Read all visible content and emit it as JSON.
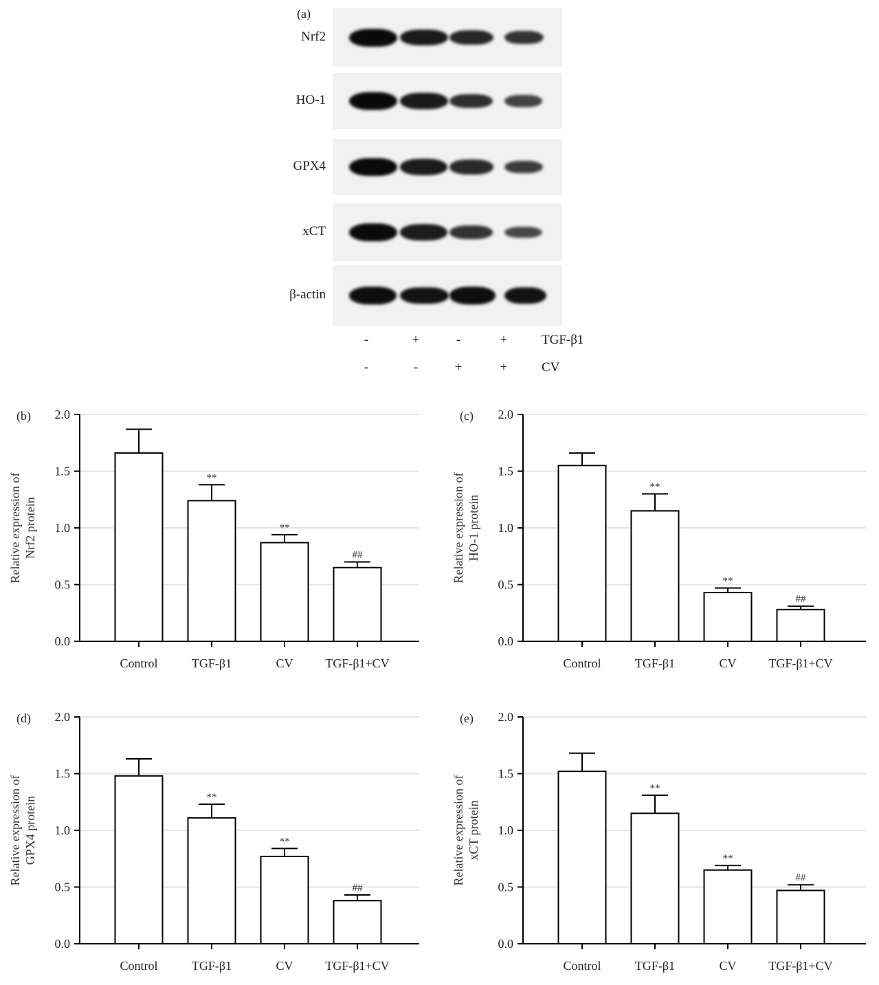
{
  "figure": {
    "panel_a": {
      "label": "(a)",
      "bands": [
        {
          "name": "Nrf2",
          "intensity": [
            1.0,
            0.85,
            0.72,
            0.6
          ]
        },
        {
          "name": "HO-1",
          "intensity": [
            1.0,
            0.85,
            0.65,
            0.45
          ]
        },
        {
          "name": "GPX4",
          "intensity": [
            1.0,
            0.82,
            0.7,
            0.5
          ]
        },
        {
          "name": "xCT",
          "intensity": [
            1.0,
            0.82,
            0.6,
            0.4
          ]
        },
        {
          "name": "β-actin",
          "intensity": [
            0.95,
            0.92,
            0.95,
            0.9
          ]
        }
      ],
      "conditions": [
        {
          "label": "TGF-β1",
          "values": [
            "-",
            "+",
            "-",
            "+"
          ]
        },
        {
          "label": "CV",
          "values": [
            "-",
            "-",
            "+",
            "+"
          ]
        }
      ]
    }
  },
  "chart_data": [
    {
      "panel": "(b)",
      "type": "bar",
      "title": "",
      "xlabel": "",
      "ylabel": "Relative expression of Nrf2 protein",
      "ylabel_lines": [
        "Relative expression of",
        "Nrf2 protein"
      ],
      "categories": [
        "Control",
        "TGF-β1",
        "CV",
        "TGF-β1+CV"
      ],
      "values": [
        1.66,
        1.24,
        0.87,
        0.65
      ],
      "error_upper": [
        1.87,
        1.38,
        0.94,
        0.7
      ],
      "annotations": [
        "",
        "**",
        "**",
        "##"
      ],
      "ylim": [
        0,
        2.0
      ],
      "yticks": [
        "0.0",
        "0.5",
        "1.0",
        "1.5",
        "2.0"
      ],
      "grid": true
    },
    {
      "panel": "(c)",
      "type": "bar",
      "title": "",
      "xlabel": "",
      "ylabel": "Relative expression of HO-1 protein",
      "ylabel_lines": [
        "Relative expression of",
        "HO-1 protein"
      ],
      "categories": [
        "Control",
        "TGF-β1",
        "CV",
        "TGF-β1+CV"
      ],
      "values": [
        1.55,
        1.15,
        0.43,
        0.28
      ],
      "error_upper": [
        1.66,
        1.3,
        0.47,
        0.31
      ],
      "annotations": [
        "",
        "**",
        "**",
        "##"
      ],
      "ylim": [
        0,
        2.0
      ],
      "yticks": [
        "0.0",
        "0.5",
        "1.0",
        "1.5",
        "2.0"
      ],
      "grid": true
    },
    {
      "panel": "(d)",
      "type": "bar",
      "title": "",
      "xlabel": "",
      "ylabel": "Relative expression of GPX4 protein",
      "ylabel_lines": [
        "Relative expression of",
        "GPX4 protein"
      ],
      "categories": [
        "Control",
        "TGF-β1",
        "CV",
        "TGF-β1+CV"
      ],
      "values": [
        1.48,
        1.11,
        0.77,
        0.38
      ],
      "error_upper": [
        1.63,
        1.23,
        0.84,
        0.43
      ],
      "annotations": [
        "",
        "**",
        "**",
        "##"
      ],
      "ylim": [
        0,
        2.0
      ],
      "yticks": [
        "0.0",
        "0.5",
        "1.0",
        "1.5",
        "2.0"
      ],
      "grid": true
    },
    {
      "panel": "(e)",
      "type": "bar",
      "title": "",
      "xlabel": "",
      "ylabel": "Relative expression of xCT protein",
      "ylabel_lines": [
        "Relative expression of",
        "xCT protein"
      ],
      "categories": [
        "Control",
        "TGF-β1",
        "CV",
        "TGF-β1+CV"
      ],
      "values": [
        1.52,
        1.15,
        0.65,
        0.47
      ],
      "error_upper": [
        1.68,
        1.31,
        0.69,
        0.52
      ],
      "annotations": [
        "",
        "**",
        "**",
        "##"
      ],
      "ylim": [
        0,
        2.0
      ],
      "yticks": [
        "0.0",
        "0.5",
        "1.0",
        "1.5",
        "2.0"
      ],
      "grid": true
    }
  ]
}
